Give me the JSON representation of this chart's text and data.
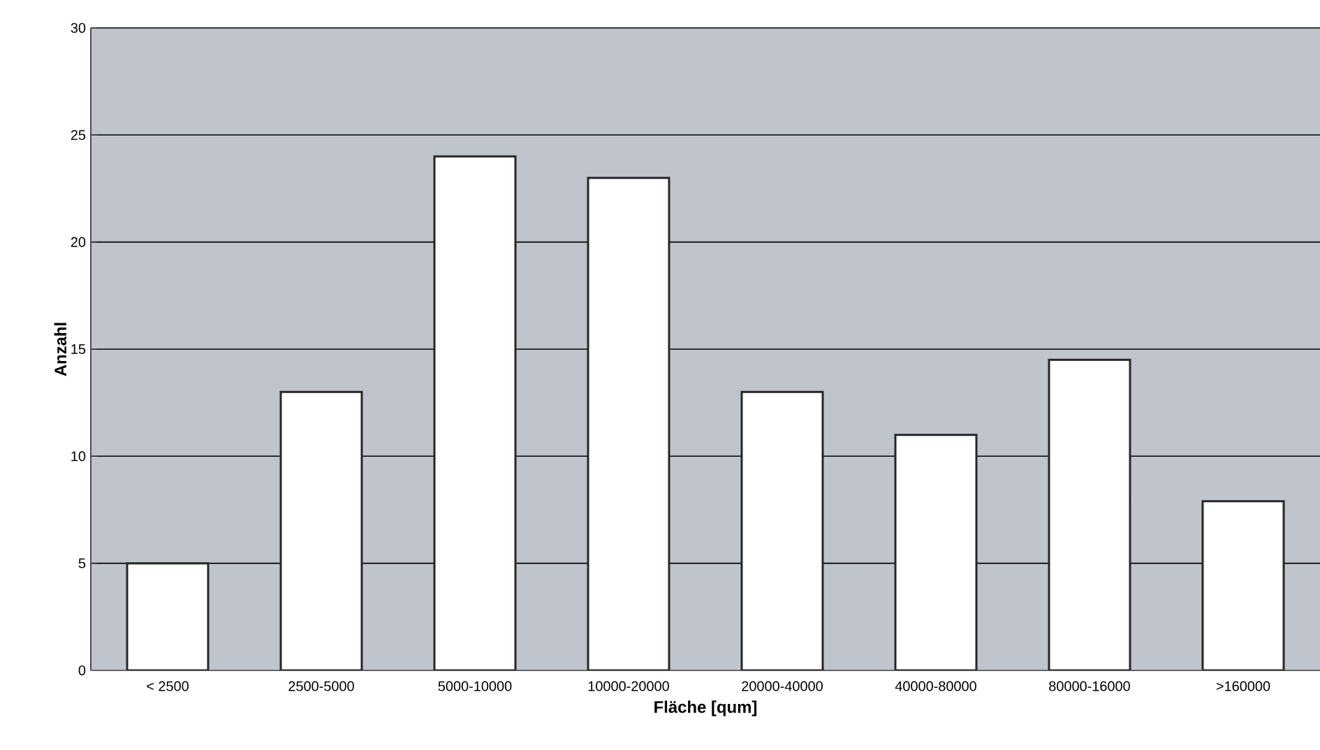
{
  "chart_data": {
    "type": "bar",
    "xlabel": "Fläche [qum]",
    "ylabel": "Anzahl",
    "categories": [
      "< 2500",
      "2500-5000",
      "5000-10000",
      "10000-20000",
      "20000-40000",
      "40000-80000",
      "80000-16000",
      ">160000"
    ],
    "values": [
      5,
      13,
      24,
      23,
      13,
      11,
      14.5,
      7.9
    ],
    "color": "#ffffff",
    "ylim": [
      0,
      30
    ],
    "yticks": [
      0,
      5,
      10,
      15,
      20,
      25,
      30
    ],
    "grid": "y"
  }
}
